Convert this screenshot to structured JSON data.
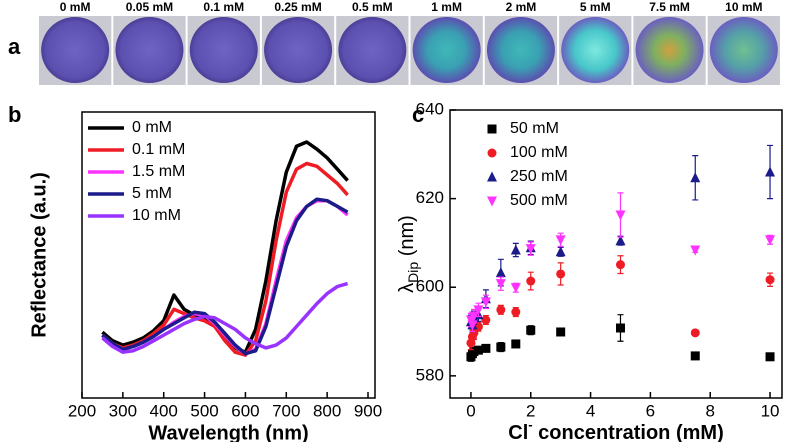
{
  "image_strip": {
    "panel": "a",
    "samples": [
      "0 mM",
      "0.05 mM",
      "0.1 mM",
      "0.25 mM",
      "0.5 mM",
      "1 mM",
      "2 mM",
      "5 mM",
      "7.5 mM",
      "10 mM"
    ]
  },
  "chart_data": [
    {
      "type": "line",
      "panel": "b",
      "x_label": "Wavelength (nm)",
      "y_label": "Reflectance (a.u.)",
      "x": [
        250,
        275,
        300,
        325,
        350,
        375,
        400,
        425,
        450,
        475,
        500,
        525,
        550,
        575,
        600,
        625,
        650,
        675,
        700,
        725,
        750,
        775,
        800,
        825,
        850
      ],
      "series": [
        {
          "name": "0 mM",
          "color": "#000000",
          "values": [
            23,
            20,
            18.5,
            19.5,
            21,
            23.5,
            27,
            36,
            31,
            29,
            28,
            26,
            22,
            17.5,
            16,
            24,
            41,
            62,
            79,
            88,
            89.5,
            87,
            84,
            80,
            76
          ]
        },
        {
          "name": "0.1 mM",
          "color": "#ee1c25",
          "values": [
            22,
            19,
            17.5,
            18.5,
            20,
            22.5,
            25.5,
            31,
            29.5,
            28,
            27,
            25,
            20,
            16,
            15,
            20,
            34,
            55,
            72,
            80,
            82,
            81,
            78,
            75,
            71
          ]
        },
        {
          "name": "1.5 mM",
          "color": "#ff33ff",
          "values": [
            22,
            19,
            17,
            18,
            19.5,
            21.5,
            24,
            26.5,
            28.5,
            29.5,
            29,
            26,
            22,
            18,
            15.5,
            17,
            26,
            41,
            55,
            63,
            67,
            69,
            69,
            67,
            64
          ]
        },
        {
          "name": "5 mM",
          "color": "#1b1b8a",
          "values": [
            22,
            19,
            17,
            18,
            19.5,
            21.5,
            24,
            26,
            28,
            30,
            29.5,
            26.5,
            22.5,
            18.5,
            15.5,
            16.5,
            25,
            39,
            53,
            62,
            67,
            69.5,
            69,
            67,
            65
          ]
        },
        {
          "name": "10 mM",
          "color": "#9933ff",
          "values": [
            21,
            18,
            16,
            16.5,
            18,
            20,
            22,
            24,
            26,
            27.5,
            28.5,
            28,
            26,
            24,
            21,
            19,
            17.5,
            18.5,
            21,
            25,
            29,
            33,
            36.5,
            39,
            40
          ]
        }
      ],
      "xlim": [
        200,
        900
      ],
      "xticks": [
        200,
        300,
        400,
        500,
        600,
        700,
        800,
        900
      ],
      "ylim": [
        0,
        100
      ],
      "legend": "upper left"
    },
    {
      "type": "scatter",
      "panel": "c",
      "x_label": {
        "main": "Cl",
        "sup": "-",
        "rest": " concentration (mM)"
      },
      "y_label": {
        "main": "λ",
        "sub": "Dip",
        "rest": " (nm)"
      },
      "x": [
        0,
        0.05,
        0.1,
        0.25,
        0.5,
        1,
        1.5,
        2,
        3,
        5,
        7.5,
        10
      ],
      "series": [
        {
          "name": "50 mM",
          "color": "#000000",
          "marker": "square",
          "values": [
            584.3,
            585,
            585.5,
            585.8,
            586.2,
            586.5,
            587.2,
            590.3,
            589.9,
            590.8,
            584.5,
            584.3
          ],
          "errors": [
            1,
            0.8,
            0.8,
            0.8,
            0.8,
            1,
            0.8,
            1,
            0.5,
            3,
            0.5,
            0.5
          ]
        },
        {
          "name": "100 mM",
          "color": "#ee1c25",
          "marker": "circle",
          "values": [
            587.4,
            588.8,
            589.7,
            591.1,
            592.6,
            594.9,
            594.4,
            601.4,
            603,
            605.1,
            589.7,
            601.7
          ],
          "errors": [
            1.5,
            1.5,
            1.5,
            1,
            1,
            1,
            1,
            2,
            2.5,
            2,
            0.5,
            1.5
          ]
        },
        {
          "name": "250 mM",
          "color": "#1b1b8a",
          "marker": "triangle-up",
          "values": [
            592.2,
            591.5,
            593.1,
            593.8,
            597.4,
            603.3,
            608.4,
            608.9,
            608,
            610.5,
            624.7,
            626
          ],
          "errors": [
            1.5,
            1.5,
            1.5,
            1.5,
            2,
            3,
            1.5,
            1.5,
            1,
            1,
            5,
            6
          ]
        },
        {
          "name": "500 mM",
          "color": "#ff33ff",
          "marker": "triangle-down",
          "values": [
            592.6,
            591.5,
            593.5,
            594.9,
            596.7,
            600.8,
            599.9,
            608.7,
            610.7,
            616.3,
            608.4,
            610.7
          ],
          "errors": [
            1.5,
            1.5,
            1.5,
            1.5,
            1.5,
            1.5,
            1,
            1.5,
            1.5,
            5,
            0.5,
            1
          ]
        }
      ],
      "xlim": [
        -0.7,
        10.4
      ],
      "xticks": [
        0,
        2,
        4,
        6,
        8,
        10
      ],
      "ylim": [
        575,
        640
      ],
      "yticks": [
        580,
        600,
        620,
        640
      ],
      "legend": "upper left"
    }
  ]
}
